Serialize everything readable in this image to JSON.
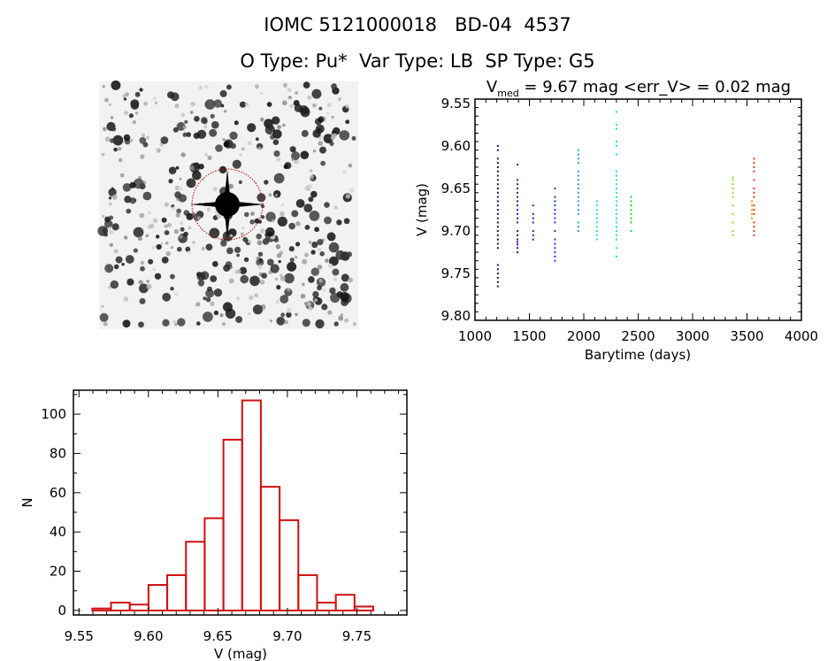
{
  "header": {
    "title": "IOMC 5121000018   BD-04  4537",
    "subtitle": "O Type: Pu*  Var Type: LB  SP Type: G5"
  },
  "image_panel": {
    "description_type": "sky-image",
    "marker_color": "#c00000"
  },
  "chart_data": [
    {
      "type": "scatter",
      "title_main": "V",
      "title_sub": "med",
      "title_rest": " = 9.67 mag <err_V> = 0.02 mag",
      "xlabel": "Barytime (days)",
      "ylabel": "V (mag)",
      "xlim": [
        1000,
        4000
      ],
      "ylim": [
        9.805,
        9.545
      ],
      "y_reversed": true,
      "xticks": [
        "1000",
        "1500",
        "2000",
        "2500",
        "3000",
        "3500",
        "4000"
      ],
      "yticks": [
        "9.55",
        "9.60",
        "9.65",
        "9.70",
        "9.75",
        "9.80"
      ],
      "grid": false,
      "series": [
        {
          "color": "#2b0a4f",
          "x": 1210,
          "values": [
            9.6,
            9.605,
            9.615,
            9.62,
            9.625,
            9.63,
            9.635,
            9.64,
            9.645,
            9.65,
            9.655,
            9.66,
            9.665,
            9.67,
            9.675,
            9.68,
            9.685,
            9.69,
            9.695,
            9.7,
            9.705,
            9.71,
            9.715,
            9.72,
            9.74,
            9.745,
            9.75,
            9.755,
            9.76,
            9.765
          ]
        },
        {
          "color": "#4a0c8c",
          "x": 1390,
          "values": [
            9.622,
            9.64,
            9.645,
            9.65,
            9.655,
            9.66,
            9.665,
            9.67,
            9.675,
            9.68,
            9.685,
            9.69,
            9.7,
            9.705,
            9.71,
            9.713,
            9.716,
            9.72,
            9.725
          ]
        },
        {
          "color": "#3a1aa8",
          "x": 1535,
          "values": [
            9.67,
            9.68,
            9.685,
            9.69,
            9.7,
            9.705,
            9.71
          ]
        },
        {
          "color": "#1c3cc8",
          "x": 1735,
          "values": [
            9.65,
            9.66,
            9.665,
            9.67,
            9.675,
            9.68,
            9.685,
            9.69,
            9.7,
            9.71,
            9.715,
            9.72,
            9.725,
            9.73,
            9.735
          ]
        },
        {
          "color": "#22a0e0",
          "x": 1950,
          "values": [
            9.605,
            9.61,
            9.615,
            9.62,
            9.63,
            9.635,
            9.64,
            9.645,
            9.65,
            9.655,
            9.66,
            9.665,
            9.67,
            9.675,
            9.68,
            9.69,
            9.695,
            9.7
          ]
        },
        {
          "color": "#30d0e8",
          "x": 2120,
          "values": [
            9.665,
            9.67,
            9.675,
            9.68,
            9.685,
            9.69,
            9.695,
            9.7,
            9.705,
            9.71
          ]
        },
        {
          "color": "#20e0c0",
          "x": 2300,
          "values": [
            9.56,
            9.575,
            9.58,
            9.595,
            9.6,
            9.61,
            9.63,
            9.635,
            9.64,
            9.645,
            9.65,
            9.655,
            9.66,
            9.665,
            9.67,
            9.675,
            9.68,
            9.685,
            9.69,
            9.695,
            9.7,
            9.705,
            9.71,
            9.72,
            9.73
          ]
        },
        {
          "color": "#22d040",
          "x": 2435,
          "values": [
            9.66,
            9.665,
            9.67,
            9.675,
            9.68,
            9.685,
            9.69,
            9.7
          ]
        },
        {
          "color": "#90e020",
          "x": 3370,
          "values": [
            9.637,
            9.64,
            9.645,
            9.65,
            9.655,
            9.66,
            9.67,
            9.68,
            9.69,
            9.7,
            9.705
          ]
        },
        {
          "color": "#f0a000",
          "x": 3545,
          "values": [
            9.665,
            9.67,
            9.675,
            9.68,
            9.685
          ]
        },
        {
          "color": "#e03c18",
          "x": 3565,
          "values": [
            9.615,
            9.62,
            9.625,
            9.63,
            9.64,
            9.65,
            9.655,
            9.66,
            9.67,
            9.675,
            9.68,
            9.69,
            9.695,
            9.7,
            9.705
          ]
        }
      ]
    },
    {
      "type": "bar",
      "histogram": true,
      "xlabel": "V (mag)",
      "ylabel": "N",
      "xlim": [
        9.546,
        9.786
      ],
      "ylim": [
        -2.3,
        112.2
      ],
      "xticks": [
        "9.55",
        "9.60",
        "9.65",
        "9.70",
        "9.75"
      ],
      "yticks": [
        "0",
        "20",
        "40",
        "60",
        "80",
        "100"
      ],
      "bin_start": 9.5596,
      "bin_width": 0.01348,
      "values": [
        1,
        4,
        3,
        13,
        18,
        35,
        47,
        87,
        107,
        63,
        46,
        18,
        4,
        8,
        2
      ],
      "color": "#d01010",
      "grid": false
    }
  ]
}
